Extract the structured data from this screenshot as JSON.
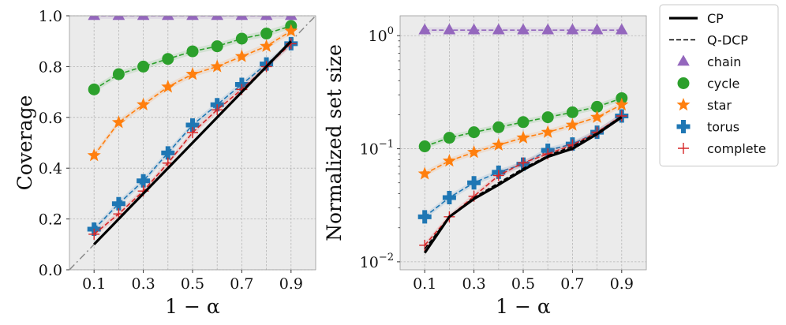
{
  "chart_data": [
    {
      "type": "line",
      "xlabel": "1 − α",
      "ylabel": "Coverage",
      "x": [
        0.1,
        0.2,
        0.3,
        0.4,
        0.5,
        0.6,
        0.7,
        0.8,
        0.9
      ],
      "xticks": [
        "0.1",
        "0.3",
        "0.5",
        "0.7",
        "0.9"
      ],
      "xlim": [
        0.0,
        1.0
      ],
      "yticks": [
        "0.0",
        "0.2",
        "0.4",
        "0.6",
        "0.8",
        "1.0"
      ],
      "ylim": [
        0.0,
        1.0
      ],
      "yscale": "linear",
      "grid": true,
      "diagonal_reference": true,
      "series": [
        {
          "name": "CP",
          "style": "solid",
          "color": "#000000",
          "values": [
            0.1,
            0.2,
            0.3,
            0.4,
            0.5,
            0.6,
            0.7,
            0.8,
            0.9
          ]
        },
        {
          "name": "Q-DCP",
          "style": "dashed",
          "color": "#000000",
          "values": [
            0.1,
            0.2,
            0.3,
            0.4,
            0.5,
            0.6,
            0.7,
            0.8,
            0.9
          ]
        },
        {
          "name": "chain",
          "marker": "triangle",
          "color": "#9467bd",
          "values": [
            1.0,
            1.0,
            1.0,
            1.0,
            1.0,
            1.0,
            1.0,
            1.0,
            1.0
          ]
        },
        {
          "name": "cycle",
          "marker": "circle",
          "color": "#2ca02c",
          "values": [
            0.71,
            0.77,
            0.8,
            0.83,
            0.86,
            0.88,
            0.91,
            0.93,
            0.96
          ]
        },
        {
          "name": "star",
          "marker": "star",
          "color": "#ff7f0e",
          "values": [
            0.45,
            0.58,
            0.65,
            0.72,
            0.77,
            0.8,
            0.84,
            0.88,
            0.94
          ]
        },
        {
          "name": "torus",
          "marker": "plus-thick",
          "color": "#1f77b4",
          "values": [
            0.16,
            0.26,
            0.35,
            0.46,
            0.57,
            0.65,
            0.73,
            0.81,
            0.89
          ]
        },
        {
          "name": "complete",
          "marker": "plus-thin",
          "color": "#d62728",
          "values": [
            0.14,
            0.22,
            0.31,
            0.42,
            0.54,
            0.63,
            0.71,
            0.8,
            0.89
          ]
        }
      ]
    },
    {
      "type": "line",
      "xlabel": "1 − α",
      "ylabel": "Normalized set size",
      "x": [
        0.1,
        0.2,
        0.3,
        0.4,
        0.5,
        0.6,
        0.7,
        0.8,
        0.9
      ],
      "xticks": [
        "0.1",
        "0.3",
        "0.5",
        "0.7",
        "0.9"
      ],
      "xlim": [
        0.0,
        1.0
      ],
      "yscale": "log",
      "ylim": [
        0.0085,
        1.5
      ],
      "yticks": [
        {
          "value": 0.01,
          "base": "10",
          "exp": "−2"
        },
        {
          "value": 0.1,
          "base": "10",
          "exp": "−1"
        },
        {
          "value": 1,
          "base": "10",
          "exp": "0"
        }
      ],
      "grid": true,
      "series": [
        {
          "name": "CP",
          "style": "solid",
          "color": "#000000",
          "values": [
            0.012,
            0.025,
            0.036,
            0.048,
            0.065,
            0.085,
            0.1,
            0.135,
            0.19
          ]
        },
        {
          "name": "Q-DCP",
          "style": "dashed",
          "color": "#000000",
          "values": [
            0.013,
            0.025,
            0.037,
            0.05,
            0.067,
            0.087,
            0.105,
            0.138,
            0.195
          ]
        },
        {
          "name": "chain",
          "marker": "triangle",
          "color": "#9467bd",
          "values": [
            1.12,
            1.12,
            1.12,
            1.12,
            1.12,
            1.12,
            1.12,
            1.12,
            1.12
          ]
        },
        {
          "name": "cycle",
          "marker": "circle",
          "color": "#2ca02c",
          "values": [
            0.105,
            0.125,
            0.14,
            0.155,
            0.172,
            0.19,
            0.21,
            0.235,
            0.28
          ]
        },
        {
          "name": "star",
          "marker": "star",
          "color": "#ff7f0e",
          "values": [
            0.06,
            0.078,
            0.093,
            0.108,
            0.125,
            0.14,
            0.162,
            0.19,
            0.245
          ]
        },
        {
          "name": "torus",
          "marker": "plus-thick",
          "color": "#1f77b4",
          "values": [
            0.025,
            0.037,
            0.05,
            0.062,
            0.073,
            0.097,
            0.11,
            0.14,
            0.195
          ]
        },
        {
          "name": "complete",
          "marker": "plus-thin",
          "color": "#d62728",
          "values": [
            0.014,
            0.025,
            0.038,
            0.058,
            0.075,
            0.09,
            0.108,
            0.14,
            0.195
          ]
        }
      ]
    }
  ],
  "legend": {
    "placement": "outside-right",
    "items": [
      {
        "label": "CP",
        "kind": "solid",
        "color": "#000000"
      },
      {
        "label": "Q-DCP",
        "kind": "dashed",
        "color": "#000000"
      },
      {
        "label": "chain",
        "kind": "triangle",
        "color": "#9467bd"
      },
      {
        "label": "cycle",
        "kind": "circle",
        "color": "#2ca02c"
      },
      {
        "label": "star",
        "kind": "star",
        "color": "#ff7f0e"
      },
      {
        "label": "torus",
        "kind": "plus-thick",
        "color": "#1f77b4"
      },
      {
        "label": "complete",
        "kind": "plus-thin",
        "color": "#d62728"
      }
    ]
  }
}
